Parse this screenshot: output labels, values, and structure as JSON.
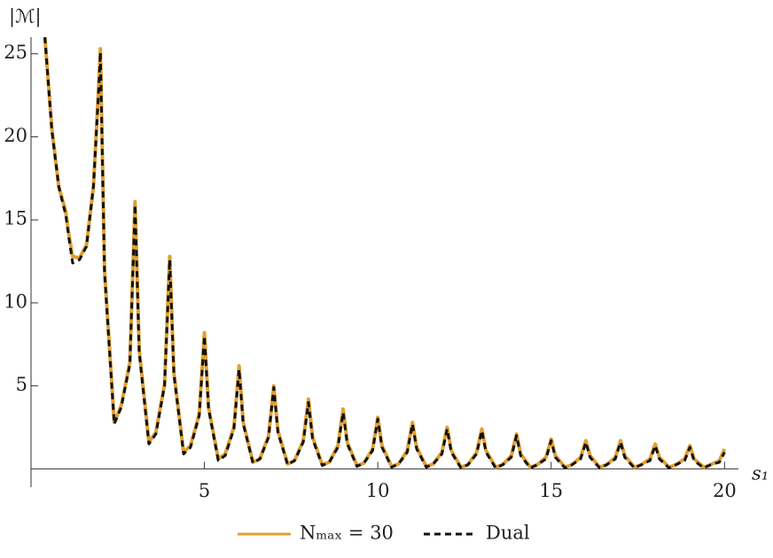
{
  "chart_data": {
    "type": "line",
    "y_label": "|ℳ|",
    "x_label": "s₁",
    "x": [
      0.4,
      0.6,
      0.8,
      1.0,
      1.1,
      1.2,
      1.4,
      1.6,
      1.8,
      1.95,
      2.0,
      2.12,
      2.4,
      2.6,
      2.85,
      3,
      3.12,
      3.4,
      3.6,
      3.85,
      4,
      4.12,
      4.4,
      4.6,
      4.85,
      5,
      5.12,
      5.4,
      5.6,
      5.85,
      6,
      6.12,
      6.4,
      6.6,
      6.85,
      7,
      7.12,
      7.4,
      7.6,
      7.85,
      8,
      8.12,
      8.4,
      8.6,
      8.85,
      9,
      9.12,
      9.4,
      9.6,
      9.85,
      10,
      10.12,
      10.4,
      10.6,
      10.85,
      11,
      11.12,
      11.4,
      11.6,
      11.85,
      12,
      12.12,
      12.4,
      12.6,
      12.85,
      13,
      13.12,
      13.4,
      13.6,
      13.85,
      14,
      14.12,
      14.4,
      14.6,
      14.85,
      15,
      15.12,
      15.4,
      15.6,
      15.85,
      16,
      16.12,
      16.4,
      16.6,
      16.85,
      17,
      17.12,
      17.4,
      17.6,
      17.85,
      18,
      18.12,
      18.4,
      18.6,
      18.85,
      19,
      19.12,
      19.4,
      19.6,
      19.85,
      20
    ],
    "series": [
      {
        "name": "Nₘₐₓ = 30",
        "color": "#e0a030",
        "dash": false,
        "values": [
          26,
          20.5,
          17,
          15.5,
          14,
          12.8,
          12.7,
          13.5,
          17,
          23,
          25.3,
          12,
          2.8,
          3.8,
          6.4,
          16.1,
          7.2,
          1.6,
          2.2,
          5.1,
          12.8,
          5.8,
          1.0,
          1.4,
          3.3,
          8.2,
          3.7,
          0.6,
          0.9,
          2.5,
          6.2,
          2.8,
          0.4,
          0.6,
          2.0,
          5.0,
          2.3,
          0.3,
          0.5,
          1.7,
          4.2,
          1.9,
          0.25,
          0.4,
          1.4,
          3.6,
          1.6,
          0.2,
          0.35,
          1.2,
          3.1,
          1.4,
          0.15,
          0.3,
          1.1,
          2.8,
          1.3,
          0.15,
          0.3,
          1.0,
          2.5,
          1.1,
          0.1,
          0.25,
          1.0,
          2.4,
          1.1,
          0.1,
          0.25,
          0.8,
          2.1,
          0.9,
          0.1,
          0.25,
          0.7,
          1.8,
          0.8,
          0.1,
          0.25,
          0.7,
          1.7,
          0.8,
          0.1,
          0.25,
          0.7,
          1.7,
          0.8,
          0.1,
          0.25,
          0.6,
          1.5,
          0.7,
          0.1,
          0.25,
          0.6,
          1.4,
          0.6,
          0.1,
          0.25,
          0.5,
          1.2
        ]
      },
      {
        "name": "Dual",
        "color": "#111111",
        "dash": true,
        "values": [
          26,
          20.4,
          17,
          15.3,
          13.8,
          12.4,
          12.6,
          13.4,
          17,
          22.8,
          25.1,
          11.8,
          2.7,
          3.7,
          6.3,
          15.9,
          7.0,
          1.5,
          2.1,
          5.0,
          12.6,
          5.7,
          0.9,
          1.3,
          3.2,
          8.0,
          3.6,
          0.5,
          0.8,
          2.4,
          6.0,
          2.7,
          0.35,
          0.6,
          1.9,
          4.9,
          2.2,
          0.25,
          0.5,
          1.6,
          4.0,
          1.8,
          0.2,
          0.4,
          1.3,
          3.4,
          1.5,
          0.15,
          0.35,
          1.1,
          3.0,
          1.3,
          0.1,
          0.3,
          1.0,
          2.7,
          1.2,
          0.1,
          0.3,
          0.9,
          2.4,
          1.0,
          0.05,
          0.25,
          0.9,
          2.3,
          1.0,
          0.05,
          0.25,
          0.7,
          2.0,
          0.8,
          0.05,
          0.25,
          0.6,
          1.7,
          0.7,
          0.05,
          0.25,
          0.6,
          1.6,
          0.7,
          0.05,
          0.25,
          0.6,
          1.6,
          0.7,
          0.05,
          0.25,
          0.5,
          1.4,
          0.6,
          0.05,
          0.25,
          0.5,
          1.3,
          0.5,
          0.05,
          0.25,
          0.4,
          1.0
        ]
      }
    ],
    "xlim": [
      0,
      20.4
    ],
    "ylim": [
      -1.1,
      26
    ],
    "xticks": [
      5,
      10,
      15,
      20
    ],
    "yticks": [
      5,
      10,
      15,
      20,
      25
    ]
  }
}
